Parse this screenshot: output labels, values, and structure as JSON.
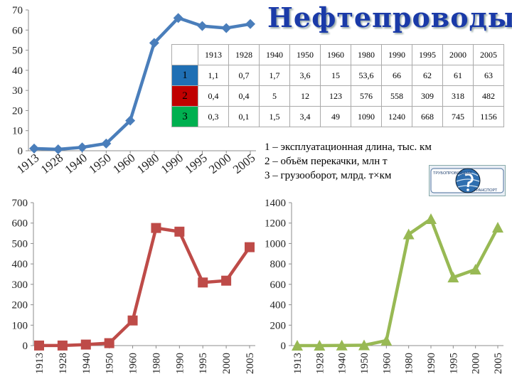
{
  "title": "Нефтепроводы",
  "table": {
    "years": [
      "1913",
      "1928",
      "1940",
      "1950",
      "1960",
      "1980",
      "1990",
      "1995",
      "2000",
      "2005"
    ],
    "rows": [
      {
        "label": "1",
        "color": "#1f6fb4",
        "values": [
          "1,1",
          "0,7",
          "1,7",
          "3,6",
          "15",
          "53,6",
          "66",
          "62",
          "61",
          "63"
        ]
      },
      {
        "label": "2",
        "color": "#c00000",
        "values": [
          "0,4",
          "0,4",
          "5",
          "12",
          "123",
          "576",
          "558",
          "309",
          "318",
          "482"
        ]
      },
      {
        "label": "3",
        "color": "#00b050",
        "values": [
          "0,3",
          "0,1",
          "1,5",
          "3,4",
          "49",
          "1090",
          "1240",
          "668",
          "745",
          "1156"
        ]
      }
    ]
  },
  "legend": [
    "1 – эксплуатационная длина, тыс. км",
    "2 – объём перекачки, млн т",
    "3 – грузооборот, млрд. т×км"
  ],
  "logo": {
    "top": "ТРУБОПРОВОДНЫЙ",
    "bottom": "ТРАНСПОРТ"
  },
  "chart_data": [
    {
      "type": "line",
      "categories": [
        "1913",
        "1928",
        "1940",
        "1950",
        "1960",
        "1980",
        "1990",
        "1995",
        "2000",
        "2005"
      ],
      "values": [
        1.1,
        0.7,
        1.7,
        3.6,
        15,
        53.6,
        66,
        62,
        61,
        63
      ],
      "yticks": [
        "0",
        "10",
        "20",
        "30",
        "40",
        "50",
        "60",
        "70"
      ],
      "ylim": [
        0,
        70
      ],
      "color": "#4a7ebb",
      "marker": "diamond",
      "grid": false
    },
    {
      "type": "line",
      "categories": [
        "1913",
        "1928",
        "1940",
        "1950",
        "1960",
        "1980",
        "1990",
        "1995",
        "2000",
        "2005"
      ],
      "values": [
        0.4,
        0.4,
        5,
        12,
        123,
        576,
        558,
        309,
        318,
        482
      ],
      "yticks": [
        "0",
        "100",
        "200",
        "300",
        "400",
        "500",
        "600",
        "700"
      ],
      "ylim": [
        0,
        700
      ],
      "color": "#be4b48",
      "marker": "square",
      "grid": false
    },
    {
      "type": "line",
      "categories": [
        "1913",
        "1928",
        "1940",
        "1950",
        "1960",
        "1980",
        "1990",
        "1995",
        "2000",
        "2005"
      ],
      "values": [
        0.3,
        0.1,
        1.5,
        3.4,
        49,
        1090,
        1240,
        668,
        745,
        1156
      ],
      "yticks": [
        "0",
        "200",
        "400",
        "600",
        "800",
        "1000",
        "1200",
        "1400"
      ],
      "ylim": [
        0,
        1400
      ],
      "color": "#98b954",
      "marker": "triangle",
      "grid": false
    }
  ]
}
